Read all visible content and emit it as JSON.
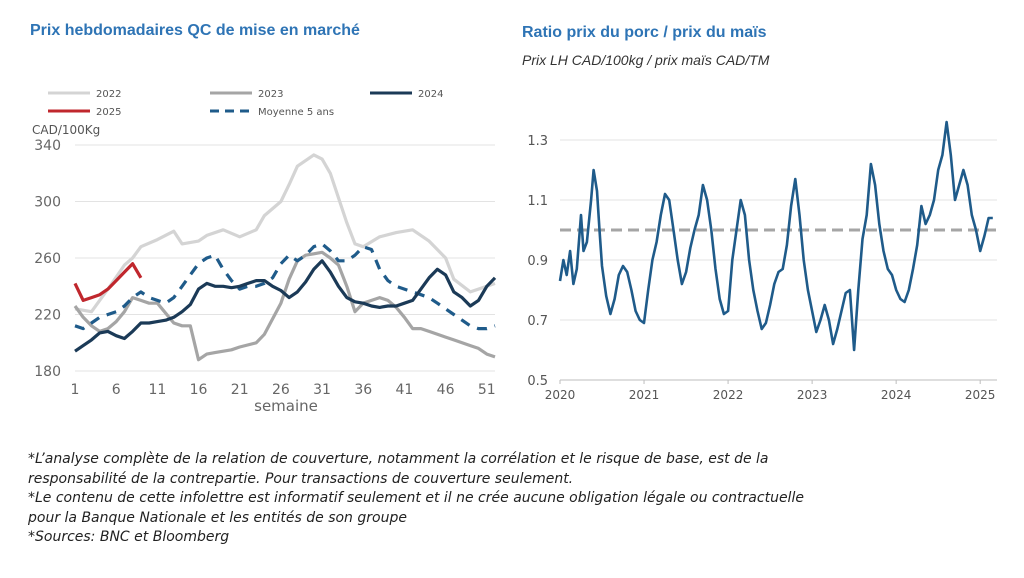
{
  "chart_data": [
    {
      "type": "line",
      "title": "Prix hebdomadaires QC de mise en marché",
      "ylabel": "CAD/100Kg",
      "xlabel": "semaine",
      "ylim": [
        180,
        340
      ],
      "xlim": [
        1,
        52
      ],
      "yticks": [
        "340",
        "300",
        "260",
        "220",
        "180"
      ],
      "xticks": [
        "1",
        "6",
        "11",
        "16",
        "21",
        "26",
        "31",
        "36",
        "41",
        "46",
        "51"
      ],
      "legend": [
        "2022",
        "2023",
        "2024",
        "2025",
        "Moyenne 5 ans"
      ],
      "grid": "horizontal",
      "series": [
        {
          "name": "2022",
          "color": "#d4d4d4",
          "style": "solid",
          "x": [
            1,
            3,
            5,
            7,
            8,
            9,
            11,
            13,
            14,
            16,
            17,
            19,
            21,
            23,
            24,
            26,
            27,
            28,
            30,
            31,
            32,
            34,
            35,
            36,
            38,
            40,
            42,
            44,
            46,
            47,
            49,
            51,
            52
          ],
          "y": [
            224,
            222,
            238,
            255,
            260,
            268,
            273,
            279,
            270,
            272,
            276,
            280,
            275,
            280,
            290,
            300,
            312,
            325,
            333,
            330,
            320,
            285,
            270,
            268,
            275,
            278,
            280,
            272,
            260,
            245,
            236,
            240,
            242
          ]
        },
        {
          "name": "2023",
          "color": "#a5a5a5",
          "style": "solid",
          "x": [
            1,
            2,
            3,
            4,
            5,
            6,
            7,
            8,
            9,
            10,
            11,
            13,
            14,
            15,
            16,
            17,
            18,
            20,
            21,
            23,
            24,
            26,
            27,
            28,
            29,
            30,
            31,
            32,
            33,
            34,
            35,
            36,
            37,
            38,
            39,
            40,
            41,
            42,
            43,
            44,
            45,
            46,
            47,
            48,
            49,
            50,
            51,
            52
          ],
          "y": [
            226,
            218,
            212,
            208,
            210,
            215,
            222,
            232,
            230,
            228,
            228,
            214,
            212,
            212,
            188,
            192,
            193,
            195,
            197,
            200,
            206,
            228,
            245,
            258,
            262,
            263,
            264,
            260,
            255,
            240,
            222,
            228,
            230,
            232,
            230,
            225,
            218,
            210,
            210,
            208,
            206,
            204,
            202,
            200,
            198,
            196,
            192,
            190
          ]
        },
        {
          "name": "2024",
          "color": "#1b3a57",
          "style": "solid",
          "x": [
            1,
            2,
            3,
            4,
            5,
            6,
            7,
            8,
            9,
            10,
            11,
            12,
            13,
            14,
            15,
            16,
            17,
            18,
            19,
            20,
            21,
            22,
            23,
            24,
            25,
            26,
            27,
            28,
            29,
            30,
            31,
            32,
            33,
            34,
            35,
            36,
            37,
            38,
            39,
            40,
            41,
            42,
            43,
            44,
            45,
            46,
            47,
            48,
            49,
            50,
            51,
            52
          ],
          "y": [
            194,
            198,
            202,
            207,
            208,
            205,
            203,
            208,
            214,
            214,
            215,
            216,
            218,
            222,
            227,
            238,
            242,
            240,
            240,
            239,
            240,
            242,
            244,
            244,
            240,
            237,
            232,
            236,
            243,
            252,
            258,
            250,
            240,
            232,
            229,
            228,
            226,
            225,
            226,
            226,
            228,
            230,
            238,
            246,
            252,
            248,
            236,
            232,
            226,
            230,
            240,
            246
          ]
        },
        {
          "name": "2025",
          "color": "#c0272d",
          "style": "solid",
          "x": [
            1,
            2,
            3,
            4,
            5,
            6,
            7,
            8,
            9
          ],
          "y": [
            242,
            230,
            232,
            234,
            238,
            244,
            250,
            256,
            246
          ]
        },
        {
          "name": "Moyenne 5 ans",
          "color": "#1f5b8a",
          "style": "dashed",
          "x": [
            1,
            2,
            3,
            4,
            5,
            6,
            7,
            8,
            9,
            10,
            11,
            12,
            13,
            14,
            15,
            16,
            17,
            18,
            19,
            20,
            21,
            22,
            23,
            24,
            25,
            26,
            27,
            28,
            29,
            30,
            31,
            32,
            33,
            34,
            35,
            36,
            37,
            38,
            39,
            40,
            41,
            42,
            43,
            44,
            45,
            46,
            47,
            48,
            49,
            50,
            51,
            52
          ],
          "y": [
            212,
            210,
            214,
            218,
            220,
            222,
            226,
            232,
            236,
            232,
            230,
            228,
            232,
            240,
            248,
            256,
            260,
            262,
            252,
            244,
            238,
            240,
            240,
            242,
            246,
            256,
            262,
            258,
            262,
            268,
            270,
            265,
            258,
            258,
            262,
            268,
            266,
            252,
            244,
            240,
            238,
            236,
            234,
            232,
            228,
            224,
            220,
            216,
            212,
            210,
            210,
            212
          ]
        }
      ]
    },
    {
      "type": "line",
      "title": "Ratio prix du porc / prix du maïs",
      "subtitle": "Prix LH CAD/100kg / prix maïs CAD/TM",
      "xlabel": "",
      "ylabel": "",
      "ylim": [
        0.5,
        1.4
      ],
      "xlim": [
        2020.0,
        2025.2
      ],
      "yticks": [
        "1.3",
        "1.1",
        "0.9",
        "0.7",
        "0.5"
      ],
      "xticks": [
        "2020",
        "2021",
        "2022",
        "2023",
        "2024",
        "2025"
      ],
      "grid": "horizontal",
      "reference_line": {
        "y": 1.0,
        "color": "#a5a5a5",
        "style": "dashed"
      },
      "series": [
        {
          "name": "",
          "color": "#1f5b8a",
          "x": [
            2020.0,
            2020.04,
            2020.08,
            2020.12,
            2020.16,
            2020.2,
            2020.25,
            2020.28,
            2020.32,
            2020.37,
            2020.4,
            2020.44,
            2020.47,
            2020.5,
            2020.55,
            2020.6,
            2020.65,
            2020.7,
            2020.75,
            2020.8,
            2020.85,
            2020.9,
            2020.95,
            2021.0,
            2021.05,
            2021.1,
            2021.15,
            2021.2,
            2021.25,
            2021.3,
            2021.35,
            2021.4,
            2021.45,
            2021.5,
            2021.55,
            2021.6,
            2021.65,
            2021.7,
            2021.75,
            2021.8,
            2021.85,
            2021.9,
            2021.95,
            2022.0,
            2022.05,
            2022.1,
            2022.15,
            2022.2,
            2022.25,
            2022.3,
            2022.35,
            2022.4,
            2022.45,
            2022.5,
            2022.55,
            2022.6,
            2022.65,
            2022.7,
            2022.75,
            2022.8,
            2022.85,
            2022.9,
            2022.95,
            2023.0,
            2023.05,
            2023.1,
            2023.15,
            2023.2,
            2023.25,
            2023.3,
            2023.35,
            2023.4,
            2023.45,
            2023.5,
            2023.55,
            2023.6,
            2023.65,
            2023.7,
            2023.75,
            2023.8,
            2023.85,
            2023.9,
            2023.95,
            2024.0,
            2024.05,
            2024.1,
            2024.15,
            2024.2,
            2024.25,
            2024.3,
            2024.35,
            2024.4,
            2024.45,
            2024.5,
            2024.55,
            2024.6,
            2024.65,
            2024.7,
            2024.75,
            2024.8,
            2024.85,
            2024.9,
            2024.95,
            2025.0,
            2025.05,
            2025.1,
            2025.15
          ],
          "y": [
            0.83,
            0.9,
            0.85,
            0.93,
            0.82,
            0.87,
            1.05,
            0.93,
            0.96,
            1.1,
            1.2,
            1.13,
            1.0,
            0.88,
            0.78,
            0.72,
            0.77,
            0.85,
            0.88,
            0.86,
            0.8,
            0.73,
            0.7,
            0.69,
            0.8,
            0.9,
            0.96,
            1.05,
            1.12,
            1.1,
            1.0,
            0.9,
            0.82,
            0.86,
            0.94,
            1.0,
            1.05,
            1.15,
            1.1,
            1.0,
            0.87,
            0.77,
            0.72,
            0.73,
            0.9,
            1.0,
            1.1,
            1.05,
            0.9,
            0.8,
            0.73,
            0.67,
            0.69,
            0.75,
            0.82,
            0.86,
            0.87,
            0.95,
            1.08,
            1.17,
            1.05,
            0.9,
            0.8,
            0.73,
            0.66,
            0.7,
            0.75,
            0.7,
            0.62,
            0.67,
            0.73,
            0.79,
            0.8,
            0.6,
            0.8,
            0.97,
            1.05,
            1.22,
            1.15,
            1.02,
            0.93,
            0.87,
            0.85,
            0.8,
            0.77,
            0.76,
            0.8,
            0.87,
            0.95,
            1.08,
            1.02,
            1.05,
            1.1,
            1.2,
            1.25,
            1.36,
            1.25,
            1.1,
            1.15,
            1.2,
            1.15,
            1.05,
            1.0,
            0.93,
            0.98,
            1.04,
            1.04
          ]
        }
      ]
    }
  ],
  "notes": [
    "*L’analyse complète de la relation de couverture, notamment la corrélation et le risque de base, est de la",
    "responsabilité de la contrepartie. Pour transactions de couverture seulement.",
    "*Le contenu de cette infolettre est informatif seulement et il ne crée aucune obligation légale ou contractuelle",
    "pour la Banque Nationale et les entités de son groupe",
    "*Sources: BNC et Bloomberg"
  ]
}
